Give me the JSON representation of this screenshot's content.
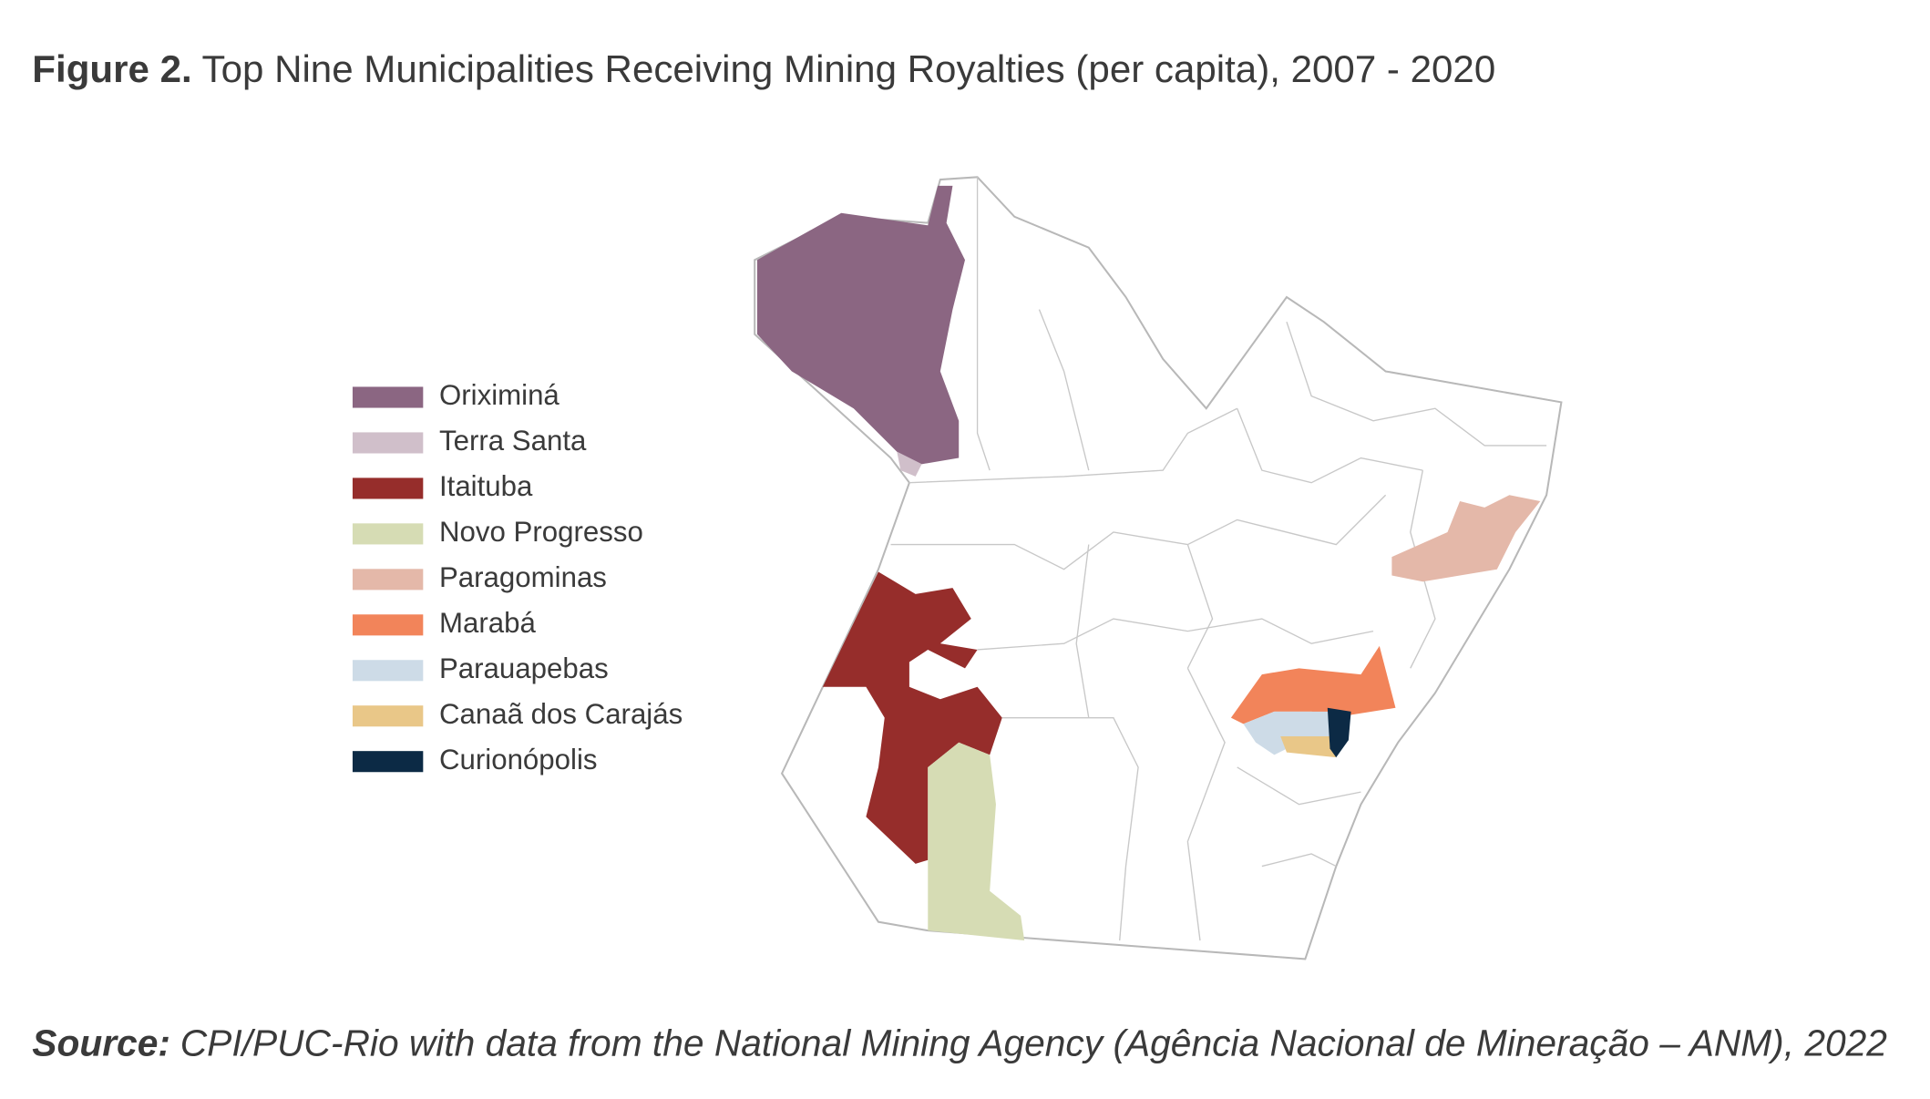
{
  "title": {
    "label": "Figure 2.",
    "text": "Top Nine Municipalities Receiving Mining Royalties (per capita), 2007 - 2020"
  },
  "legend": [
    {
      "name": "Oriximiná",
      "color": "#8b6682"
    },
    {
      "name": "Terra Santa",
      "color": "#d0bfca"
    },
    {
      "name": "Itaituba",
      "color": "#962d2b"
    },
    {
      "name": "Novo Progresso",
      "color": "#d6dcb4"
    },
    {
      "name": "Paragominas",
      "color": "#e4b8a9"
    },
    {
      "name": "Marabá",
      "color": "#f2845a"
    },
    {
      "name": "Parauapebas",
      "color": "#cddbe7"
    },
    {
      "name": "Canaã dos Carajás",
      "color": "#e9c788"
    },
    {
      "name": "Curionópolis",
      "color": "#0c2a45"
    }
  ],
  "source": {
    "label": "Source:",
    "text": "CPI/PUC-Rio with data from the National Mining Agency (Agência Nacional de Mineração – ANM), 2022"
  }
}
